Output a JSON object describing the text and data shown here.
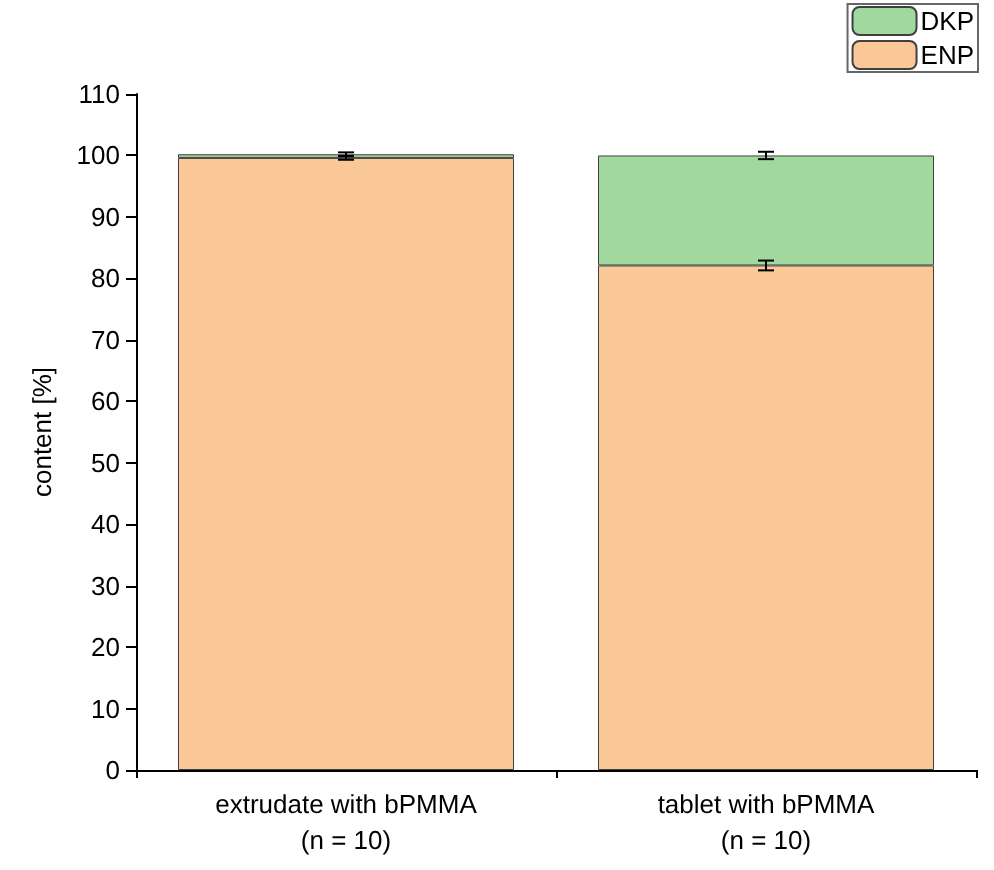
{
  "chart_data": {
    "type": "bar",
    "stacked": true,
    "ylabel": "content [%]",
    "categories": [
      "extrudate with bPMMA\n(n = 10)",
      "tablet with bPMMA\n(n = 10)"
    ],
    "series": [
      {
        "name": "ENP",
        "color": "#fac896",
        "values": [
          99.6,
          82.1
        ],
        "errors": [
          0.3,
          0.8
        ]
      },
      {
        "name": "DKP",
        "color": "#a0d89e",
        "values": [
          0.6,
          17.9
        ],
        "errors": [
          0.3,
          0.6
        ]
      }
    ],
    "ylim": [
      0,
      110
    ],
    "yticks": [
      0,
      10,
      20,
      30,
      40,
      50,
      60,
      70,
      80,
      90,
      100,
      110
    ],
    "grid": false,
    "legend": "top right"
  }
}
